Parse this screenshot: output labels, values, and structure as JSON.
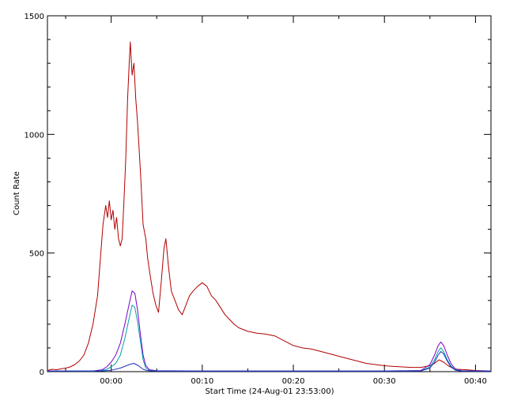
{
  "chart_data": {
    "type": "line",
    "title": "",
    "xlabel": "Start Time (24-Aug-01 23:53:00)",
    "ylabel": "Count Rate",
    "x_unit": "minutes relative to 00:00",
    "xlim": [
      -7,
      41.7
    ],
    "ylim": [
      0,
      1500
    ],
    "x_ticks": [
      {
        "value": 0,
        "label": "00:00"
      },
      {
        "value": 10,
        "label": "00:10"
      },
      {
        "value": 20,
        "label": "00:20"
      },
      {
        "value": 30,
        "label": "00:30"
      },
      {
        "value": 40,
        "label": "00:40"
      }
    ],
    "y_ticks": [
      {
        "value": 0,
        "label": "0"
      },
      {
        "value": 500,
        "label": "500"
      },
      {
        "value": 1000,
        "label": "1000"
      },
      {
        "value": 1500,
        "label": "1500"
      }
    ],
    "grid": false,
    "legend": "none",
    "series": [
      {
        "color": "#b00000",
        "points": [
          [
            -7,
            5
          ],
          [
            -6.5,
            10
          ],
          [
            -6,
            8
          ],
          [
            -5.5,
            12
          ],
          [
            -5,
            15
          ],
          [
            -4.5,
            20
          ],
          [
            -4,
            30
          ],
          [
            -3.5,
            45
          ],
          [
            -3,
            70
          ],
          [
            -2.5,
            120
          ],
          [
            -2,
            200
          ],
          [
            -1.5,
            320
          ],
          [
            -1.2,
            470
          ],
          [
            -0.9,
            620
          ],
          [
            -0.6,
            700
          ],
          [
            -0.4,
            650
          ],
          [
            -0.2,
            720
          ],
          [
            0,
            640
          ],
          [
            0.2,
            680
          ],
          [
            0.4,
            600
          ],
          [
            0.6,
            650
          ],
          [
            0.8,
            560
          ],
          [
            1.0,
            530
          ],
          [
            1.2,
            560
          ],
          [
            1.4,
            720
          ],
          [
            1.6,
            900
          ],
          [
            1.8,
            1150
          ],
          [
            2.0,
            1320
          ],
          [
            2.1,
            1390
          ],
          [
            2.3,
            1250
          ],
          [
            2.5,
            1300
          ],
          [
            2.7,
            1150
          ],
          [
            2.9,
            1050
          ],
          [
            3.2,
            850
          ],
          [
            3.5,
            620
          ],
          [
            3.8,
            560
          ],
          [
            4.0,
            480
          ],
          [
            4.3,
            400
          ],
          [
            4.6,
            330
          ],
          [
            4.9,
            280
          ],
          [
            5.2,
            250
          ],
          [
            5.5,
            380
          ],
          [
            5.8,
            520
          ],
          [
            6.0,
            560
          ],
          [
            6.3,
            440
          ],
          [
            6.6,
            340
          ],
          [
            7.0,
            300
          ],
          [
            7.4,
            260
          ],
          [
            7.8,
            240
          ],
          [
            8.2,
            280
          ],
          [
            8.6,
            320
          ],
          [
            9.0,
            340
          ],
          [
            9.5,
            360
          ],
          [
            10.0,
            375
          ],
          [
            10.5,
            360
          ],
          [
            11.0,
            320
          ],
          [
            11.5,
            300
          ],
          [
            12.0,
            270
          ],
          [
            12.5,
            240
          ],
          [
            13.0,
            220
          ],
          [
            13.5,
            200
          ],
          [
            14.0,
            185
          ],
          [
            15.0,
            170
          ],
          [
            16.0,
            162
          ],
          [
            17.0,
            158
          ],
          [
            18.0,
            150
          ],
          [
            19.0,
            130
          ],
          [
            20.0,
            110
          ],
          [
            21.0,
            100
          ],
          [
            22.0,
            95
          ],
          [
            23.0,
            85
          ],
          [
            24.0,
            75
          ],
          [
            25.0,
            65
          ],
          [
            26.0,
            55
          ],
          [
            27.0,
            45
          ],
          [
            28.0,
            35
          ],
          [
            29.0,
            30
          ],
          [
            30.0,
            25
          ],
          [
            31.0,
            22
          ],
          [
            32.0,
            20
          ],
          [
            33.0,
            18
          ],
          [
            34.0,
            18
          ],
          [
            35.0,
            25
          ],
          [
            35.5,
            35
          ],
          [
            36.0,
            50
          ],
          [
            36.5,
            40
          ],
          [
            37.0,
            25
          ],
          [
            37.5,
            15
          ],
          [
            38.0,
            10
          ],
          [
            39.0,
            8
          ],
          [
            40.0,
            5
          ],
          [
            41.7,
            3
          ]
        ]
      },
      {
        "color": "#7a00c8",
        "points": [
          [
            -7,
            3
          ],
          [
            -2,
            3
          ],
          [
            -1,
            8
          ],
          [
            -0.5,
            20
          ],
          [
            0,
            40
          ],
          [
            0.5,
            70
          ],
          [
            1.0,
            120
          ],
          [
            1.5,
            200
          ],
          [
            2.0,
            290
          ],
          [
            2.3,
            340
          ],
          [
            2.6,
            330
          ],
          [
            2.9,
            260
          ],
          [
            3.2,
            160
          ],
          [
            3.5,
            70
          ],
          [
            3.8,
            25
          ],
          [
            4.2,
            8
          ],
          [
            5,
            4
          ],
          [
            10,
            3
          ],
          [
            20,
            3
          ],
          [
            30,
            3
          ],
          [
            34,
            5
          ],
          [
            35,
            30
          ],
          [
            35.5,
            70
          ],
          [
            35.9,
            110
          ],
          [
            36.2,
            125
          ],
          [
            36.5,
            110
          ],
          [
            36.9,
            70
          ],
          [
            37.3,
            35
          ],
          [
            37.8,
            10
          ],
          [
            38.5,
            4
          ],
          [
            41.7,
            3
          ]
        ]
      },
      {
        "color": "#00a0a8",
        "points": [
          [
            -7,
            2
          ],
          [
            -2,
            2
          ],
          [
            -1,
            5
          ],
          [
            -0.5,
            10
          ],
          [
            0,
            20
          ],
          [
            0.5,
            35
          ],
          [
            1.0,
            70
          ],
          [
            1.5,
            140
          ],
          [
            2.0,
            230
          ],
          [
            2.3,
            280
          ],
          [
            2.6,
            270
          ],
          [
            2.9,
            210
          ],
          [
            3.2,
            130
          ],
          [
            3.5,
            50
          ],
          [
            3.8,
            15
          ],
          [
            4.2,
            5
          ],
          [
            5,
            3
          ],
          [
            10,
            2
          ],
          [
            20,
            2
          ],
          [
            30,
            2
          ],
          [
            34,
            3
          ],
          [
            35,
            20
          ],
          [
            35.5,
            50
          ],
          [
            35.9,
            85
          ],
          [
            36.2,
            100
          ],
          [
            36.5,
            85
          ],
          [
            36.9,
            50
          ],
          [
            37.3,
            25
          ],
          [
            37.8,
            8
          ],
          [
            38.5,
            3
          ],
          [
            41.7,
            2
          ]
        ]
      },
      {
        "color": "#2030c0",
        "points": [
          [
            -7,
            2
          ],
          [
            -1,
            3
          ],
          [
            0,
            6
          ],
          [
            1,
            15
          ],
          [
            2,
            30
          ],
          [
            2.5,
            35
          ],
          [
            3,
            25
          ],
          [
            3.5,
            10
          ],
          [
            4,
            4
          ],
          [
            5,
            2
          ],
          [
            30,
            2
          ],
          [
            34,
            3
          ],
          [
            35,
            15
          ],
          [
            35.5,
            40
          ],
          [
            35.9,
            70
          ],
          [
            36.2,
            85
          ],
          [
            36.5,
            75
          ],
          [
            36.9,
            45
          ],
          [
            37.3,
            20
          ],
          [
            37.8,
            6
          ],
          [
            38.5,
            2
          ],
          [
            41.7,
            2
          ]
        ]
      }
    ]
  }
}
